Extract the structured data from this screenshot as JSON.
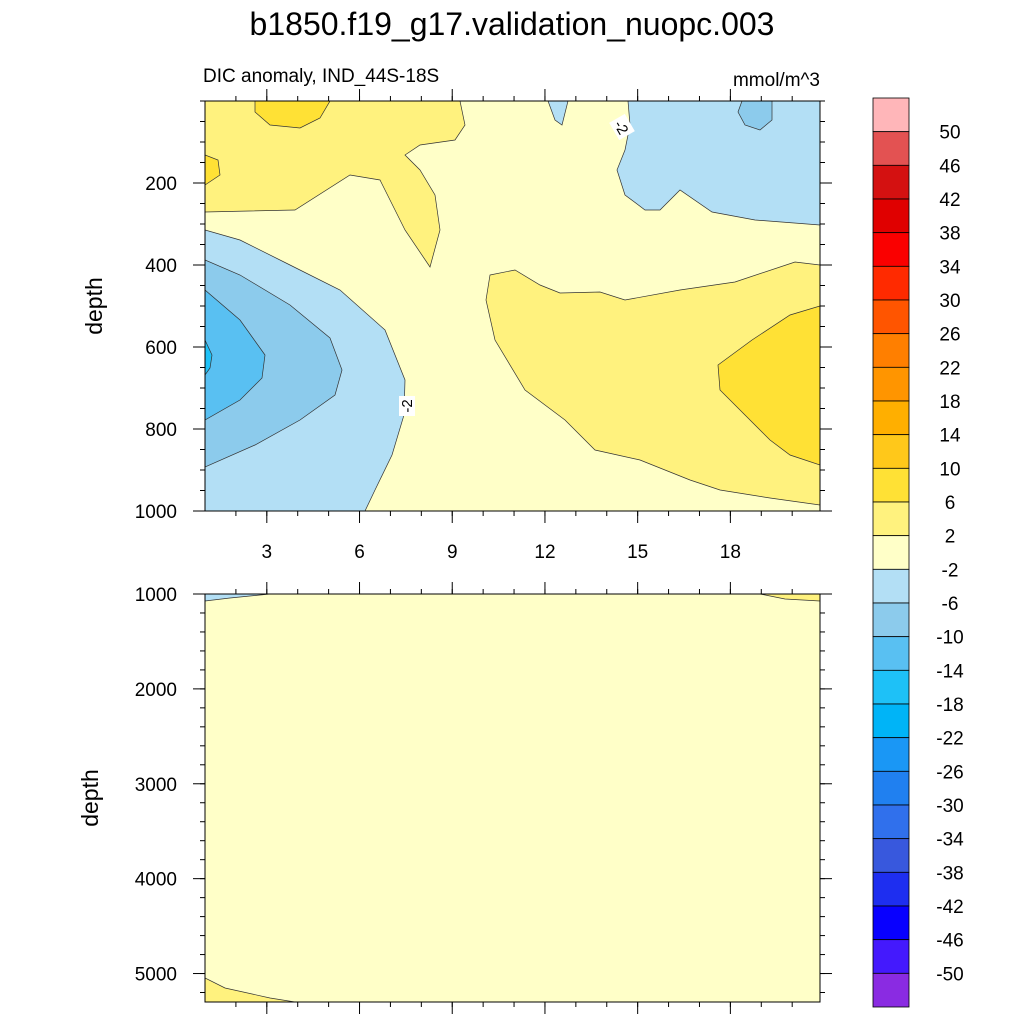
{
  "chart_data": {
    "type": "heatmap",
    "subtype": "filled-contour",
    "title": "b1850.f19_g17.validation_nuopc.003",
    "subtitle_left": "DIC anomaly, IND_44S-18S",
    "subtitle_right": "mmol/m^3",
    "ylabel": "depth",
    "xlabel": "",
    "x_range": [
      1,
      20.9
    ],
    "x_ticks": [
      "3",
      "6",
      "9",
      "12",
      "15",
      "18"
    ],
    "colorbar": {
      "levels": [
        "50",
        "46",
        "42",
        "38",
        "34",
        "30",
        "26",
        "22",
        "18",
        "14",
        "10",
        "6",
        "2",
        "-2",
        "-6",
        "-10",
        "-14",
        "-18",
        "-22",
        "-26",
        "-30",
        "-34",
        "-38",
        "-42",
        "-46",
        "-50"
      ],
      "colors": [
        "#ffb6b9",
        "#e35252",
        "#d41111",
        "#e00000",
        "#fa0000",
        "#ff2a00",
        "#ff5500",
        "#ff7f00",
        "#ff9500",
        "#ffaf00",
        "#ffc81a",
        "#ffe135",
        "#fff27e",
        "#ffffc8",
        "#b3dff5",
        "#8ccbec",
        "#59c0f2",
        "#1ec1f7",
        "#00b4f7",
        "#1a97f5",
        "#2080f0",
        "#3070ec",
        "#3858dd",
        "#1e2ef0",
        "#0800ff",
        "#4419fd",
        "#8a2be2"
      ]
    },
    "panels": [
      {
        "name": "upper",
        "ylim": [
          0,
          1000
        ],
        "y_ticks": [
          "200",
          "400",
          "600",
          "800",
          "1000"
        ],
        "contour_labels": [
          "-2",
          "-2"
        ],
        "note": "Shallow anomalies: positive 2-10 near surface and at depth east, negative -2 to -14 at 400-1000 m west and near surface east"
      },
      {
        "name": "lower",
        "ylim": [
          1000,
          5300
        ],
        "y_ticks": [
          "1000",
          "2000",
          "3000",
          "4000",
          "5000"
        ],
        "note": "Deep ocean almost uniformly -2 to 2"
      }
    ]
  }
}
